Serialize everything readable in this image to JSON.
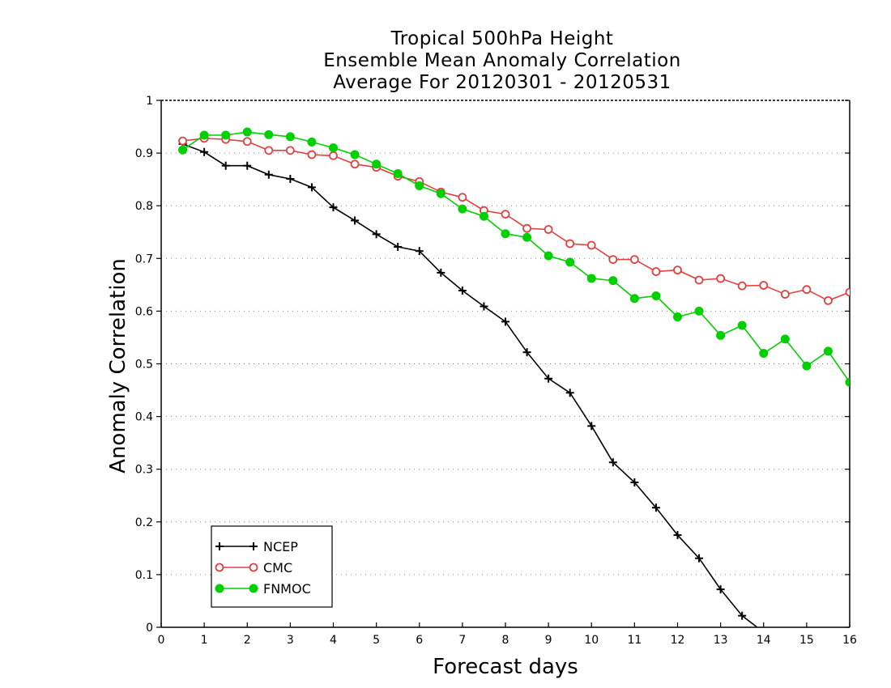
{
  "chart_data": {
    "type": "line",
    "title": [
      "Tropical 500hPa Height",
      "Ensemble Mean Anomaly Correlation",
      "Average For 20120301 - 20120531"
    ],
    "xlabel": "Forecast days",
    "ylabel": "Anomaly Correlation",
    "xlim": [
      0,
      16
    ],
    "ylim": [
      0,
      1
    ],
    "x_ticks": [
      "0",
      "1",
      "2",
      "3",
      "4",
      "5",
      "6",
      "7",
      "8",
      "9",
      "10",
      "11",
      "12",
      "13",
      "14",
      "15",
      "16"
    ],
    "y_ticks": [
      "0",
      "0.1",
      "0.2",
      "0.3",
      "0.4",
      "0.5",
      "0.6",
      "0.7",
      "0.8",
      "0.9",
      "1"
    ],
    "grid": "horizontal dotted",
    "legend_position": "bottom-left",
    "series": [
      {
        "name": "NCEP",
        "color": "#000000",
        "marker": "plus",
        "x": [
          0.5,
          1,
          1.5,
          2,
          2.5,
          3,
          3.5,
          4,
          4.5,
          5,
          5.5,
          6,
          6.5,
          7,
          7.5,
          8,
          8.5,
          9,
          9.5,
          10,
          10.5,
          11,
          11.5,
          12,
          12.5,
          13,
          13.5,
          13.85
        ],
        "values": [
          0.917,
          0.902,
          0.876,
          0.876,
          0.859,
          0.851,
          0.835,
          0.797,
          0.772,
          0.746,
          0.722,
          0.714,
          0.673,
          0.639,
          0.609,
          0.58,
          0.522,
          0.472,
          0.445,
          0.382,
          0.313,
          0.275,
          0.227,
          0.175,
          0.131,
          0.072,
          0.022,
          0.0
        ],
        "marked_points": 27
      },
      {
        "name": "CMC",
        "color": "#e04040",
        "marker": "open-circle",
        "x": [
          0.5,
          1,
          1.5,
          2,
          2.5,
          3,
          3.5,
          4,
          4.5,
          5,
          5.5,
          6,
          6.5,
          7,
          7.5,
          8,
          8.5,
          9,
          9.5,
          10,
          10.5,
          11,
          11.5,
          12,
          12.5,
          13,
          13.5,
          14,
          14.5,
          15,
          15.5,
          16
        ],
        "values": [
          0.923,
          0.928,
          0.926,
          0.922,
          0.905,
          0.905,
          0.897,
          0.895,
          0.879,
          0.873,
          0.856,
          0.846,
          0.826,
          0.816,
          0.791,
          0.784,
          0.757,
          0.755,
          0.728,
          0.725,
          0.698,
          0.698,
          0.675,
          0.678,
          0.659,
          0.662,
          0.648,
          0.649,
          0.632,
          0.641,
          0.62,
          0.636
        ]
      },
      {
        "name": "FNMOC",
        "color": "#00d000",
        "marker": "filled-circle",
        "x": [
          0.5,
          1,
          1.5,
          2,
          2.5,
          3,
          3.5,
          4,
          4.5,
          5,
          5.5,
          6,
          6.5,
          7,
          7.5,
          8,
          8.5,
          9,
          9.5,
          10,
          10.5,
          11,
          11.5,
          12,
          12.5,
          13,
          13.5,
          14,
          14.5,
          15,
          15.5,
          16
        ],
        "values": [
          0.906,
          0.934,
          0.934,
          0.94,
          0.935,
          0.931,
          0.921,
          0.91,
          0.897,
          0.879,
          0.861,
          0.838,
          0.823,
          0.794,
          0.78,
          0.747,
          0.74,
          0.705,
          0.693,
          0.662,
          0.658,
          0.624,
          0.629,
          0.589,
          0.6,
          0.554,
          0.573,
          0.52,
          0.547,
          0.496,
          0.524,
          0.465
        ]
      }
    ]
  }
}
